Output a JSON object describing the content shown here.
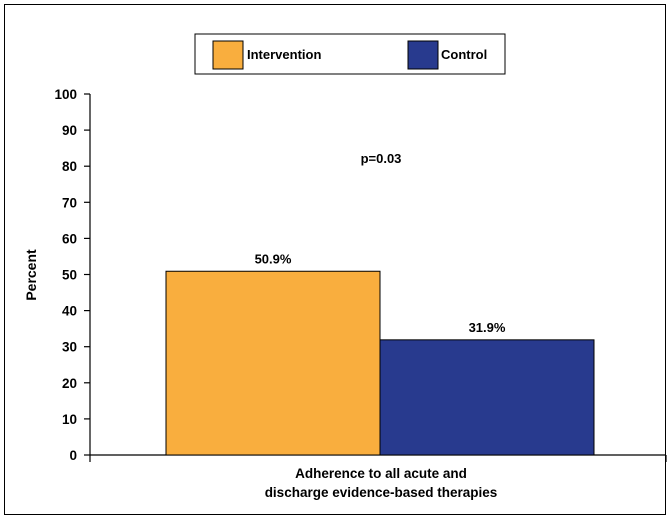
{
  "chart_data": {
    "type": "bar",
    "categories": [
      "Adherence to all acute and discharge evidence-based therapies"
    ],
    "xlabel_lines": [
      "Adherence to all acute and",
      "discharge evidence-based therapies"
    ],
    "ylabel": "Percent",
    "ylim": [
      0,
      100
    ],
    "yticks": [
      "0",
      "10",
      "20",
      "30",
      "40",
      "50",
      "60",
      "70",
      "80",
      "90",
      "100"
    ],
    "series": [
      {
        "name": "Intervention",
        "values": [
          50.9
        ],
        "label": "50.9%",
        "color": "#F9AE3E"
      },
      {
        "name": "Control",
        "values": [
          31.9
        ],
        "label": "31.9%",
        "color": "#283A8E"
      }
    ],
    "annotation": "p=0.03",
    "legend_position": "top-center",
    "grid": false
  }
}
